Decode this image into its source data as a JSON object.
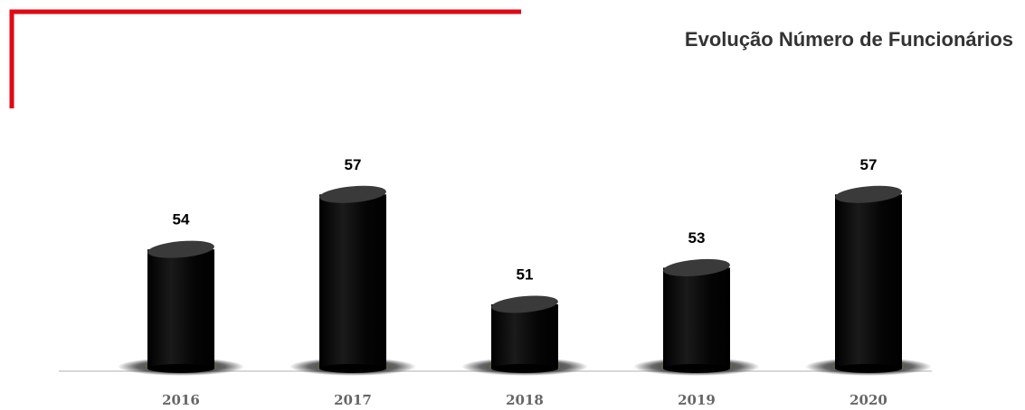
{
  "chart_data": {
    "type": "bar",
    "title": "Evolução Número de Funcionários",
    "categories": [
      "2016",
      "2017",
      "2018",
      "2019",
      "2020"
    ],
    "values": [
      54,
      57,
      51,
      53,
      57
    ],
    "color": "#000000",
    "ylim": [
      47.5,
      58
    ]
  }
}
